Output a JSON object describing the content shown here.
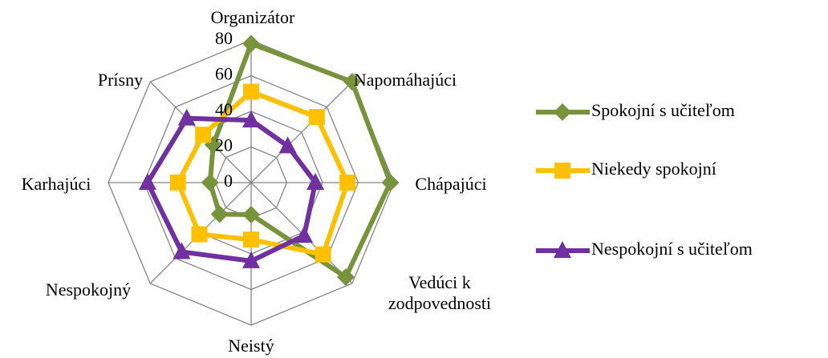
{
  "chart_data": {
    "type": "radar",
    "categories": [
      "Organizátor",
      "Napomáhajúci",
      "Chápajúci",
      "Vedúci k zodpovednosti",
      "Neistý",
      "Nespokojný",
      "Karhajúci",
      "Prísny"
    ],
    "series": [
      {
        "name": "Spokojní s učiteľom",
        "color": "#77933c",
        "marker": "diamond",
        "values": [
          78,
          80,
          78,
          75,
          18,
          25,
          23,
          30
        ]
      },
      {
        "name": "Niekedy spokojní",
        "color": "#ffc000",
        "marker": "square",
        "values": [
          51,
          52,
          54,
          57,
          32,
          41,
          41,
          38
        ]
      },
      {
        "name": "Nespokojní s učiteľom",
        "color": "#7030a0",
        "marker": "triangle",
        "values": [
          35,
          29,
          36,
          42,
          44,
          55,
          58,
          51
        ]
      }
    ],
    "ylim": [
      0,
      80
    ],
    "yticks": [
      0,
      20,
      40,
      60,
      80
    ],
    "grid": true,
    "legend": "right"
  }
}
